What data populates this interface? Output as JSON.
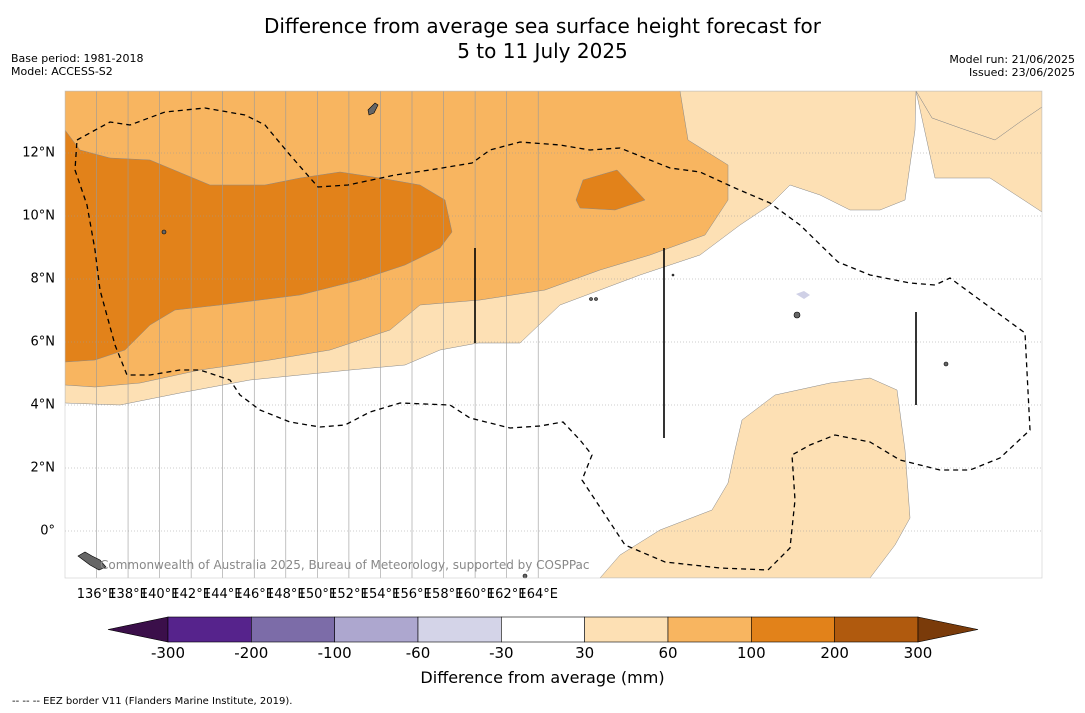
{
  "title_line1": "Difference from average sea surface height forecast for",
  "title_line2": "5 to 11 July 2025",
  "meta_left": [
    "Base period: 1981-2018",
    "Model: ACCESS-S2"
  ],
  "meta_right": [
    "Model run: 21/06/2025",
    "Issued: 23/06/2025"
  ],
  "copyright": "Commonwealth of Australia 2025, Bureau of Meteorology, supported by COSPPac",
  "longitude_labels": [
    "136°E",
    "138°E",
    "140°E",
    "142°E",
    "144°E",
    "146°E",
    "148°E",
    "150°E",
    "152°E",
    "154°E",
    "156°E",
    "158°E",
    "160°E",
    "162°E",
    "164°E"
  ],
  "latitude_labels": [
    "12°N",
    "10°N",
    "8°N",
    "6°N",
    "4°N",
    "2°N",
    "0°"
  ],
  "colorbar": {
    "title": "Difference from average (mm)",
    "tick_labels": [
      "-300",
      "-200",
      "-100",
      "-60",
      "-30",
      "30",
      "60",
      "100",
      "200",
      "300"
    ],
    "colors": {
      "below_min": "#3b0f4a",
      "bins": [
        "#56238c",
        "#7c6ca8",
        "#ada7cf",
        "#d4d4e8",
        "#ffffff",
        "#fde0b4",
        "#f8b560",
        "#e2821a",
        "#b05a0e"
      ],
      "above_max": "#7a3b0a"
    }
  },
  "footer": "--  --  -- EEZ border V11 (Flanders Marine Institute, 2019)."
}
